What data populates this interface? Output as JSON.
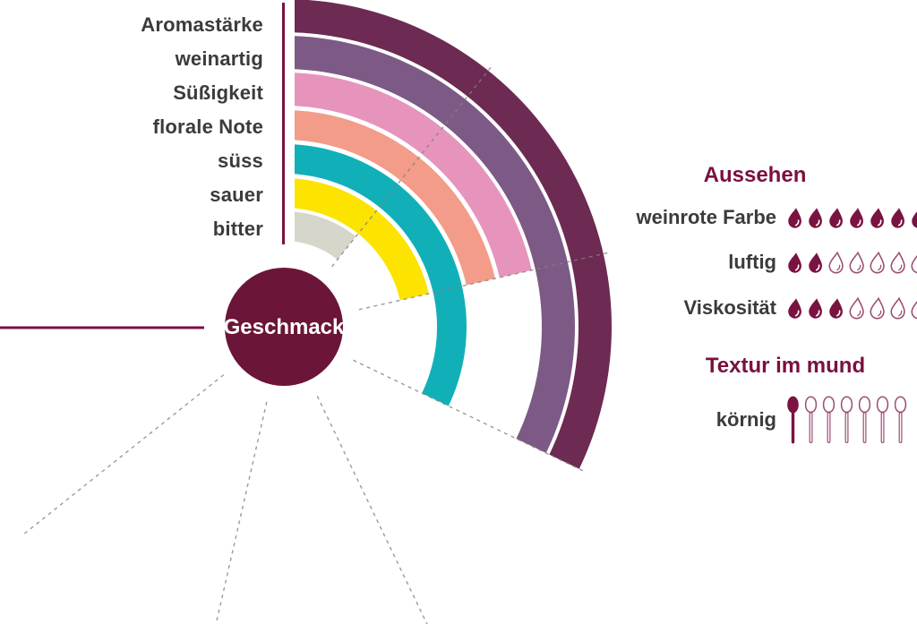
{
  "chart_data": {
    "type": "bar",
    "subtype": "radial-arc-profile",
    "title": "",
    "center_label": "Geschmack",
    "categories": [
      "Aromastärke",
      "weinartig",
      "Süßigkeit",
      "florale Note",
      "süss",
      "sauer",
      "bitter"
    ],
    "values": [
      3,
      3,
      2,
      2,
      3,
      2,
      1
    ],
    "value_scale": {
      "min": 0,
      "max": 7,
      "angle_start_deg": 0,
      "angle_end_deg": 270
    },
    "series_colors": [
      "#6d2a52",
      "#7c5a85",
      "#e794bd",
      "#f29c89",
      "#11b0b8",
      "#fce300",
      "#d6d6ca"
    ],
    "gridlines": "dashed radial lines at integer steps 1-6",
    "legend_position": "labels left of arc start"
  },
  "ratings": {
    "appearance": {
      "title": "Aussehen",
      "max": 7,
      "icon": "drop-icon",
      "rows": [
        {
          "label": "weinrote Farbe",
          "value": 7
        },
        {
          "label": "luftig",
          "value": 2
        },
        {
          "label": "Viskosität",
          "value": 3
        }
      ]
    },
    "mouthfeel": {
      "title": "Textur im mund",
      "max": 7,
      "icon": "spoon-icon",
      "rows": [
        {
          "label": "körnig",
          "value": 1
        }
      ]
    }
  },
  "colors": {
    "accent_maroon": "#7a1040",
    "circle_fill": "#6b1538",
    "icon_filled": "#7a1342",
    "icon_outline": "#9c4d74",
    "label_text": "#3b3b3b",
    "gridline": "#828282"
  }
}
